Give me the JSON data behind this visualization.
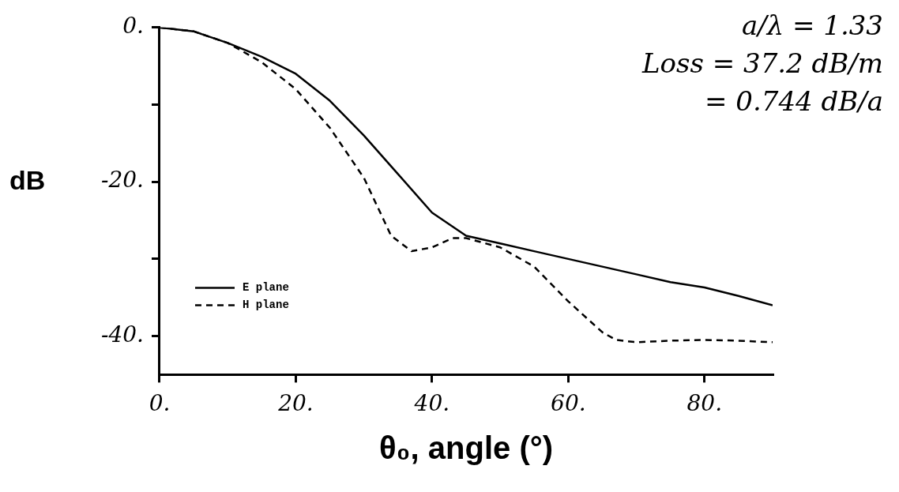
{
  "chart_data": {
    "type": "line",
    "xlabel": "θ₀, angle (°)",
    "ylabel": "dB",
    "annotations": [
      "a/λ = 1.33",
      "Loss = 37.2 dB/m",
      "= 0.744 dB/a"
    ],
    "series": [
      {
        "name": "E plane",
        "color": "#000000",
        "line_style": "solid",
        "x": [
          0,
          5,
          10,
          15,
          20,
          25,
          30,
          35,
          40,
          45,
          50,
          55,
          60,
          65,
          70,
          75,
          80,
          85,
          90
        ],
        "values": [
          0,
          -0.5,
          -2,
          -3.8,
          -6,
          -9.5,
          -14,
          -19,
          -24,
          -27,
          -28,
          -29,
          -30,
          -31,
          -32,
          -33,
          -33.7,
          -34.8,
          -36
        ]
      },
      {
        "name": "H plane",
        "color": "#000000",
        "line_style": "dashed",
        "x": [
          0,
          5,
          10,
          15,
          20,
          25,
          30,
          34,
          37,
          40,
          43,
          45,
          50,
          55,
          60,
          65,
          67,
          70,
          75,
          80,
          85,
          90
        ],
        "values": [
          0,
          -0.5,
          -2,
          -4.5,
          -8,
          -13,
          -19.5,
          -27,
          -29,
          -28.5,
          -27.3,
          -27.3,
          -28.5,
          -31,
          -35.5,
          -39.5,
          -40.5,
          -40.8,
          -40.6,
          -40.5,
          -40.6,
          -40.8
        ]
      }
    ],
    "xlim": [
      0,
      90
    ],
    "xticks": [
      {
        "value": 0,
        "label": "0."
      },
      {
        "value": 20,
        "label": "20."
      },
      {
        "value": 40,
        "label": "40."
      },
      {
        "value": 60,
        "label": "60."
      },
      {
        "value": 80,
        "label": "80."
      }
    ],
    "ylim": [
      -45,
      0
    ],
    "yticks": [
      {
        "value": 0,
        "label": "0."
      },
      {
        "value": -10,
        "label": null
      },
      {
        "value": -20,
        "label": "-20."
      },
      {
        "value": -30,
        "label": null
      },
      {
        "value": -40,
        "label": "-40."
      }
    ],
    "grid": false,
    "legend": "bottom left",
    "marker": "none"
  }
}
